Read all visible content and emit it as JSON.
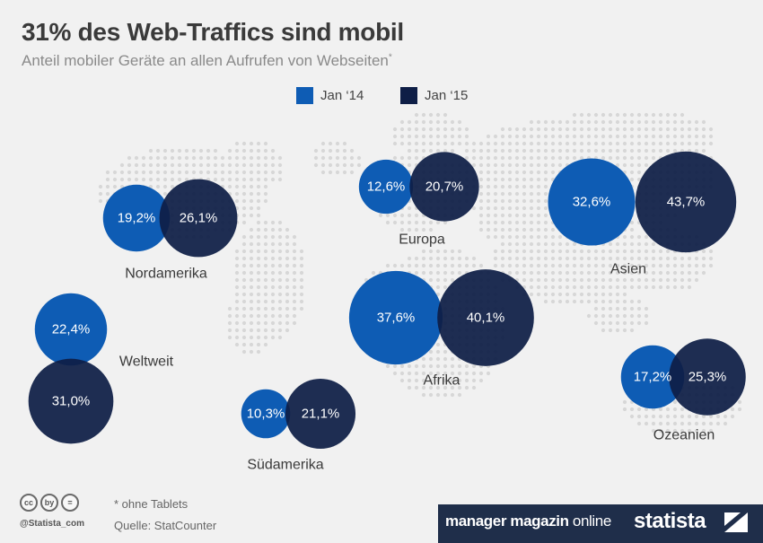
{
  "title": "31% des Web-Traffics sind mobil",
  "subtitle": "Anteil mobiler Geräte an allen Aufrufen von Webseiten",
  "subtitle_marker": "*",
  "legend": [
    {
      "label": "Jan ‘14",
      "color": "#0e5cb4"
    },
    {
      "label": "Jan ‘15",
      "color": "#0e1e46"
    }
  ],
  "chart_data": {
    "type": "bubble",
    "unit": "%",
    "series": [
      {
        "name": "Jan ‘14",
        "color": "#0e5cb4"
      },
      {
        "name": "Jan ‘15",
        "color": "#0e1e46"
      }
    ],
    "regions": [
      {
        "name": "Nordamerika",
        "jan14": 19.2,
        "jan15": 26.1,
        "jan14_label": "19,2%",
        "jan15_label": "26,1%"
      },
      {
        "name": "Europa",
        "jan14": 12.6,
        "jan15": 20.7,
        "jan14_label": "12,6%",
        "jan15_label": "20,7%"
      },
      {
        "name": "Asien",
        "jan14": 32.6,
        "jan15": 43.7,
        "jan14_label": "32,6%",
        "jan15_label": "43,7%"
      },
      {
        "name": "Weltweit",
        "jan14": 22.4,
        "jan15": 31.0,
        "jan14_label": "22,4%",
        "jan15_label": "31,0%"
      },
      {
        "name": "Afrika",
        "jan14": 37.6,
        "jan15": 40.1,
        "jan14_label": "37,6%",
        "jan15_label": "40,1%"
      },
      {
        "name": "Südamerika",
        "jan14": 10.3,
        "jan15": 21.1,
        "jan14_label": "10,3%",
        "jan15_label": "21,1%"
      },
      {
        "name": "Ozeanien",
        "jan14": 17.2,
        "jan15": 25.3,
        "jan14_label": "17,2%",
        "jan15_label": "25,3%"
      }
    ]
  },
  "footer": {
    "note": "* ohne Tablets",
    "source": "Quelle: StatCounter",
    "handle": "@Statista_com",
    "cc_icons": [
      "cc",
      "by",
      "="
    ],
    "brand_a_bold": "manager magazin",
    "brand_a_light": " online",
    "brand_b": "statista"
  }
}
